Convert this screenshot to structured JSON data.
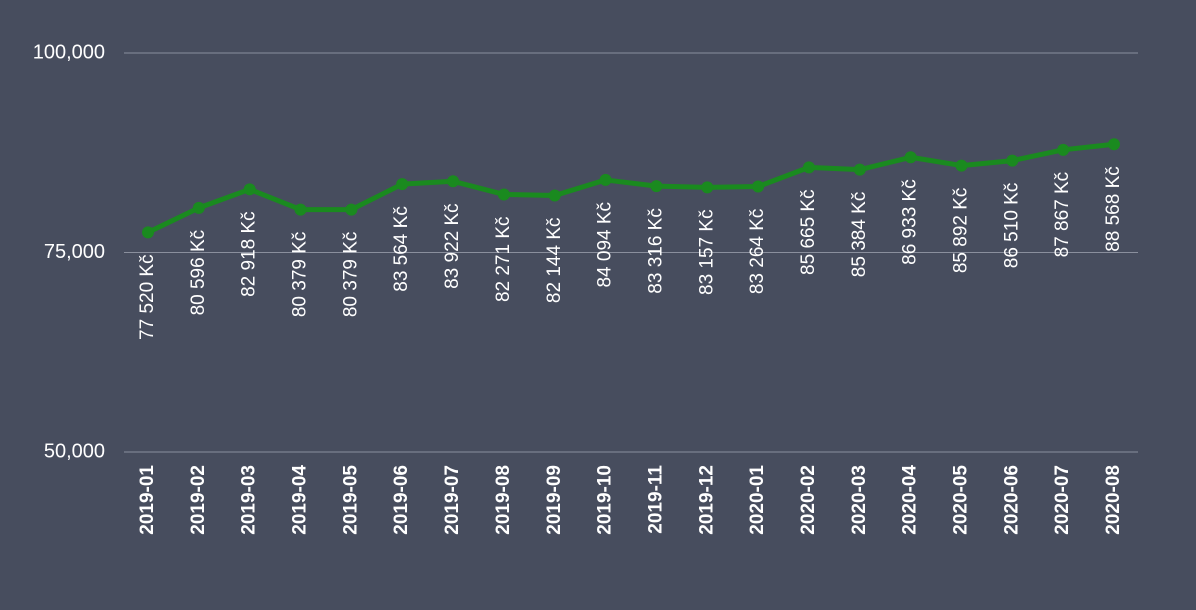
{
  "chart_data": {
    "type": "line",
    "categories": [
      "2019-01",
      "2019-02",
      "2019-03",
      "2019-04",
      "2019-05",
      "2019-06",
      "2019-07",
      "2019-08",
      "2019-09",
      "2019-10",
      "2019-11",
      "2019-12",
      "2020-01",
      "2020-02",
      "2020-03",
      "2020-04",
      "2020-05",
      "2020-06",
      "2020-07",
      "2020-08"
    ],
    "values": [
      77520,
      80596,
      82918,
      80379,
      80379,
      83564,
      83922,
      82271,
      82144,
      84094,
      83316,
      83157,
      83264,
      85665,
      85384,
      86933,
      85892,
      86510,
      87867,
      88568
    ],
    "value_labels": [
      "77 520 Kč",
      "80 596 Kč",
      "82 918 Kč",
      "80 379 Kč",
      "80 379 Kč",
      "83 564 Kč",
      "83 922 Kč",
      "82 271 Kč",
      "82 144 Kč",
      "84 094 Kč",
      "83 316 Kč",
      "83 157 Kč",
      "83 264 Kč",
      "85 665 Kč",
      "85 384 Kč",
      "86 933 Kč",
      "85 892 Kč",
      "86 510 Kč",
      "87 867 Kč",
      "88 568 Kč"
    ],
    "color": "#1a8a1f",
    "ylim": [
      50000,
      100000
    ],
    "yticks": [
      {
        "value": 50000,
        "label": "50,000"
      },
      {
        "value": 75000,
        "label": "75,000"
      },
      {
        "value": 100000,
        "label": "100,000"
      }
    ],
    "grid": true
  }
}
